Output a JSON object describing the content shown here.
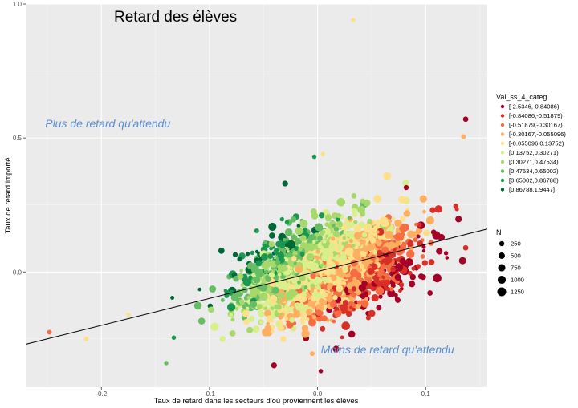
{
  "chart_data": {
    "type": "scatter",
    "title": "Retard des élèves",
    "xlabel": "Taux de retard dans les secteurs d'où proviennent les élèves",
    "ylabel": "Taux de retard importé",
    "xlim": [
      -0.27,
      0.157
    ],
    "ylim": [
      -0.43,
      1.0
    ],
    "x_ticks": [
      -0.2,
      -0.1,
      0.0,
      0.1
    ],
    "x_tick_labels": [
      "-0.2",
      "-0.1",
      "0.0",
      "0.1"
    ],
    "y_ticks": [
      0.0,
      0.5,
      1.0
    ],
    "y_tick_labels": [
      "0.0",
      "0.5",
      "1.0"
    ],
    "grid": true,
    "annotations": [
      {
        "text": "Plus de retard qu'attendu",
        "x": -0.252,
        "y": 0.54
      },
      {
        "text": "Moins de retard qu'attendu",
        "x": 0.003,
        "y": -0.305
      }
    ],
    "trend_line": {
      "x": [
        -0.27,
        0.157
      ],
      "y": [
        -0.27,
        0.16
      ]
    },
    "color_legend": {
      "title": "Val_ss_4_categ",
      "position": "right",
      "categories": [
        {
          "label": "[-2.5346,-0.84086)",
          "color": "#a50026"
        },
        {
          "label": "[-0.84086,-0.51879)",
          "color": "#d73027"
        },
        {
          "label": "[-0.51879,-0.30167)",
          "color": "#f46d43"
        },
        {
          "label": "[-0.30167,-0.055096)",
          "color": "#fdae61"
        },
        {
          "label": "[-0.055096,0.13752)",
          "color": "#fee08b"
        },
        {
          "label": "[0.13752,0.30271)",
          "color": "#d9ef8b"
        },
        {
          "label": "[0.30271,0.47534)",
          "color": "#a6d96a"
        },
        {
          "label": "[0.47534,0.65002)",
          "color": "#66bd63"
        },
        {
          "label": "[0.65002,0.86788)",
          "color": "#1a9850"
        },
        {
          "label": "[0.86788,1.9447]",
          "color": "#006837"
        }
      ]
    },
    "size_legend": {
      "title": "N",
      "position": "right",
      "values": [
        250,
        500,
        750,
        1000,
        1250
      ]
    },
    "outlier_points": [
      {
        "x": 0.033,
        "y": 0.94,
        "cat": 4,
        "n": 150
      },
      {
        "x": 0.137,
        "y": 0.57,
        "cat": 0,
        "n": 300
      },
      {
        "x": 0.135,
        "y": 0.505,
        "cat": 3,
        "n": 200
      },
      {
        "x": 0.082,
        "y": 0.315,
        "cat": 0,
        "n": 250
      },
      {
        "x": -0.248,
        "y": -0.225,
        "cat": 2,
        "n": 200
      },
      {
        "x": -0.214,
        "y": -0.25,
        "cat": 4,
        "n": 200
      },
      {
        "x": -0.005,
        "y": -0.305,
        "cat": 3,
        "n": 200
      },
      {
        "x": 0.003,
        "y": -0.37,
        "cat": 0,
        "n": 150
      },
      {
        "x": -0.14,
        "y": -0.34,
        "cat": 7,
        "n": 150
      },
      {
        "x": 0.137,
        "y": 0.09,
        "cat": 1,
        "n": 300
      },
      {
        "x": -0.133,
        "y": -0.245,
        "cat": 8,
        "n": 150
      },
      {
        "x": -0.175,
        "y": -0.16,
        "cat": 4,
        "n": 150
      },
      {
        "x": 0.005,
        "y": 0.44,
        "cat": 4,
        "n": 150
      },
      {
        "x": -0.003,
        "y": 0.43,
        "cat": 8,
        "n": 150
      },
      {
        "x": -0.03,
        "y": 0.33,
        "cat": 9,
        "n": 400
      }
    ]
  }
}
